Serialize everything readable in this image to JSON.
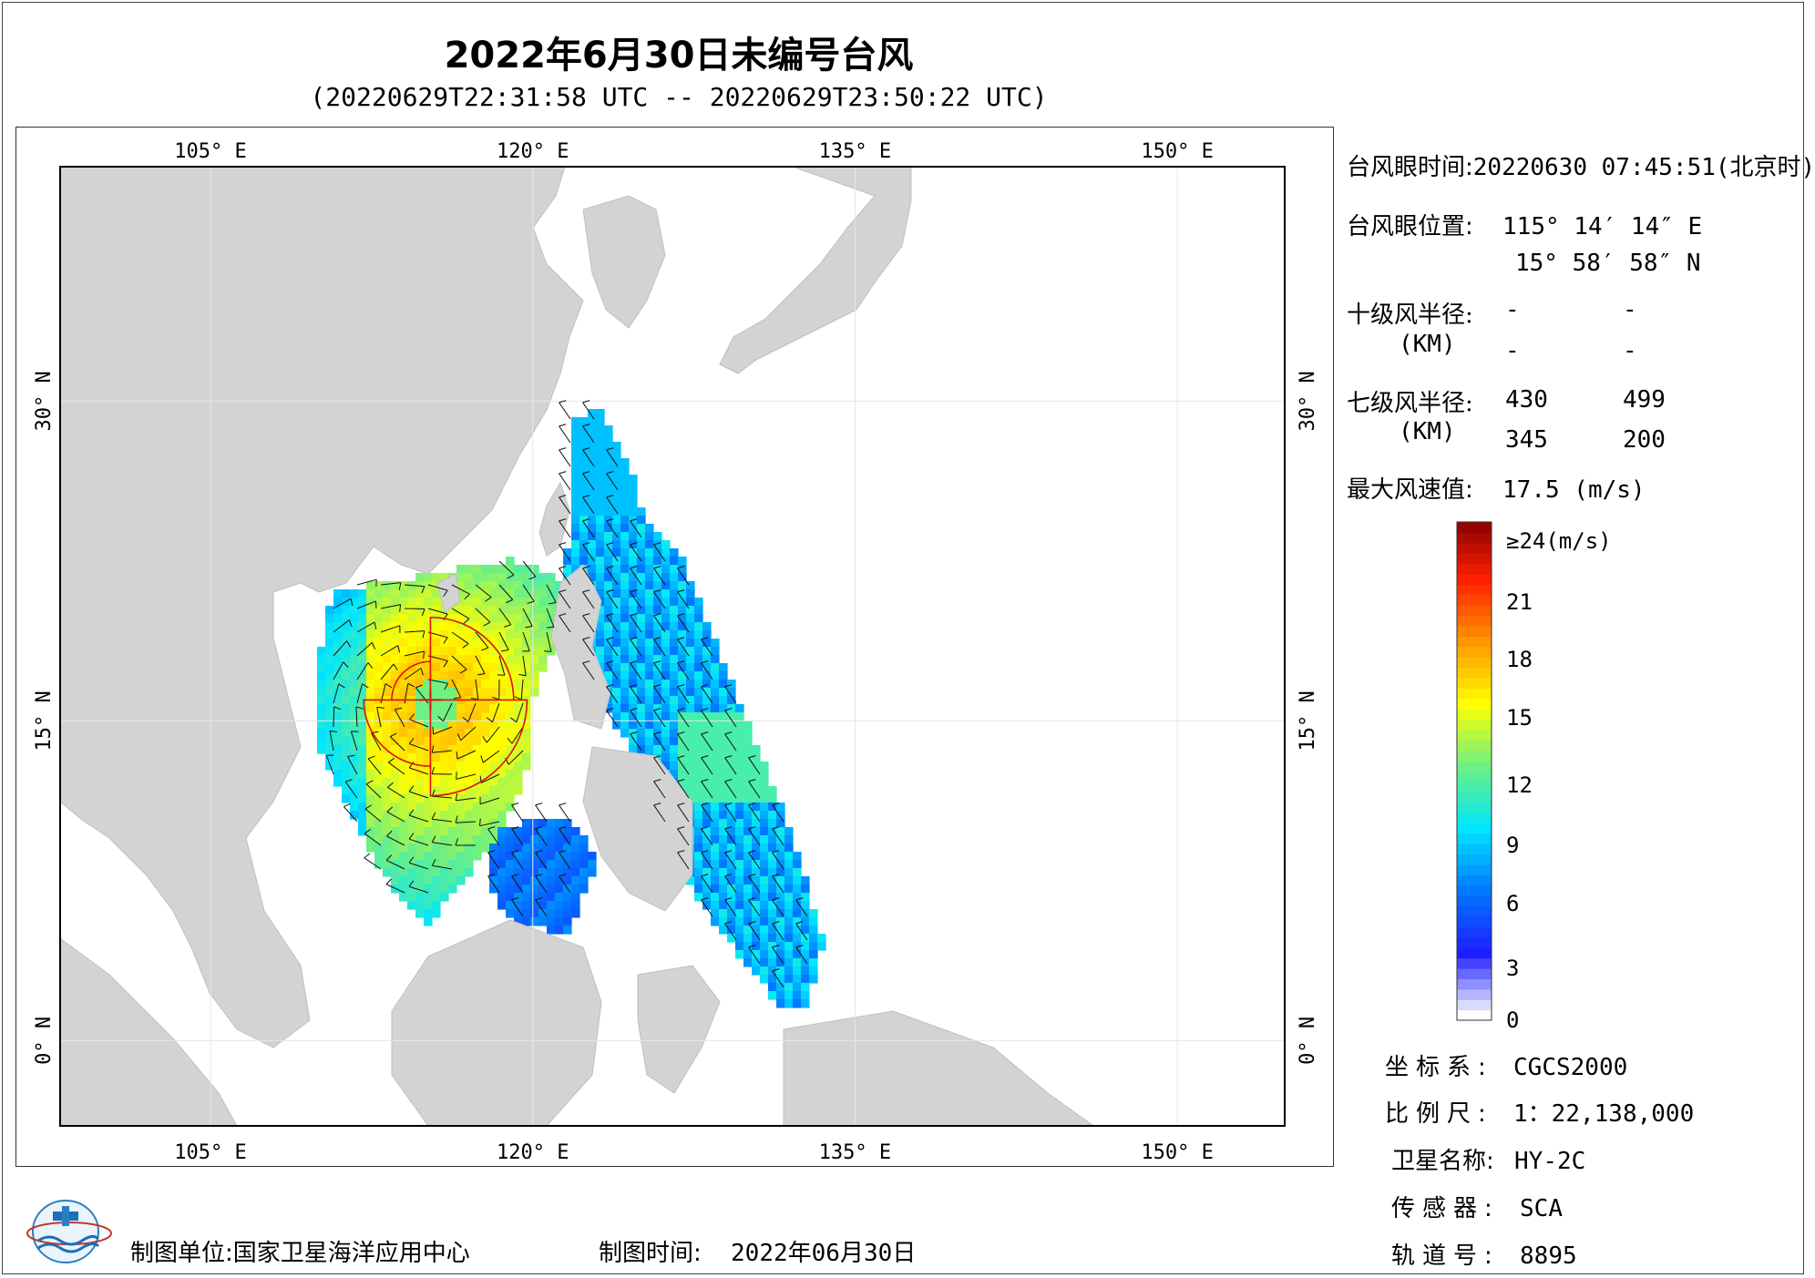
{
  "title": "2022年6月30日未编号台风",
  "subtitle": "(20220629T22:31:58 UTC -- 20220629T23:50:22 UTC)",
  "map": {
    "lon_range": [
      98,
      155
    ],
    "lat_range": [
      -4,
      41
    ],
    "lon_ticks": [
      105,
      120,
      135,
      150
    ],
    "lat_ticks": [
      0,
      15,
      30
    ],
    "lon_tick_labels": [
      "105° E",
      "120° E",
      "135° E",
      "150° E"
    ],
    "lat_tick_labels": [
      "0° N",
      "15° N",
      "30° N"
    ],
    "land_color": "#d3d3d3",
    "sea_color": "#ffffff",
    "typhoon_eye": {
      "lon": 115.237,
      "lat": 15.983
    }
  },
  "info": {
    "eye_time_label": "台风眼时间:",
    "eye_time_value": "20220630 07:45:51(北京时)",
    "eye_pos_label": "台风眼位置:",
    "eye_lon": "115° 14′ 14″ E",
    "eye_lat": "15° 58′ 58″ N",
    "r10_label": "十级风半径:",
    "r10_unit": "(KM)",
    "r10_values": [
      "-",
      "-",
      "-",
      "-"
    ],
    "r7_label": "七级风半径:",
    "r7_unit": "(KM)",
    "r7_values": [
      "430",
      "499",
      "345",
      "200"
    ],
    "max_label": "最大风速值:",
    "max_value": "17.5 (m/s)"
  },
  "colorbar": {
    "labels": [
      "≥24(m/s)",
      "21",
      "18",
      "15",
      "12",
      "9",
      "6",
      "3",
      "0"
    ],
    "values": [
      24,
      21,
      18,
      15,
      12,
      9,
      6,
      3,
      0
    ],
    "colors": [
      "#7f0000",
      "#ff0000",
      "#ff8000",
      "#ffff00",
      "#80ff80",
      "#00ffff",
      "#0080ff",
      "#0000ff",
      "#ffffff"
    ]
  },
  "meta": {
    "crs_label": "坐标系:",
    "crs_value": "CGCS2000",
    "scale_label": "比例尺:",
    "scale_value": "1：22,138,000",
    "sat_label": "卫星名称:",
    "sat_value": "HY-2C",
    "sensor_label": "传感器:",
    "sensor_value": "SCA",
    "orbit_label": "轨道号:",
    "orbit_value": "8895"
  },
  "footer": {
    "org_label": "制图单位:",
    "org_value": "国家卫星海洋应用中心",
    "date_label": "制图时间:",
    "date_value": "2022年06月30日"
  }
}
